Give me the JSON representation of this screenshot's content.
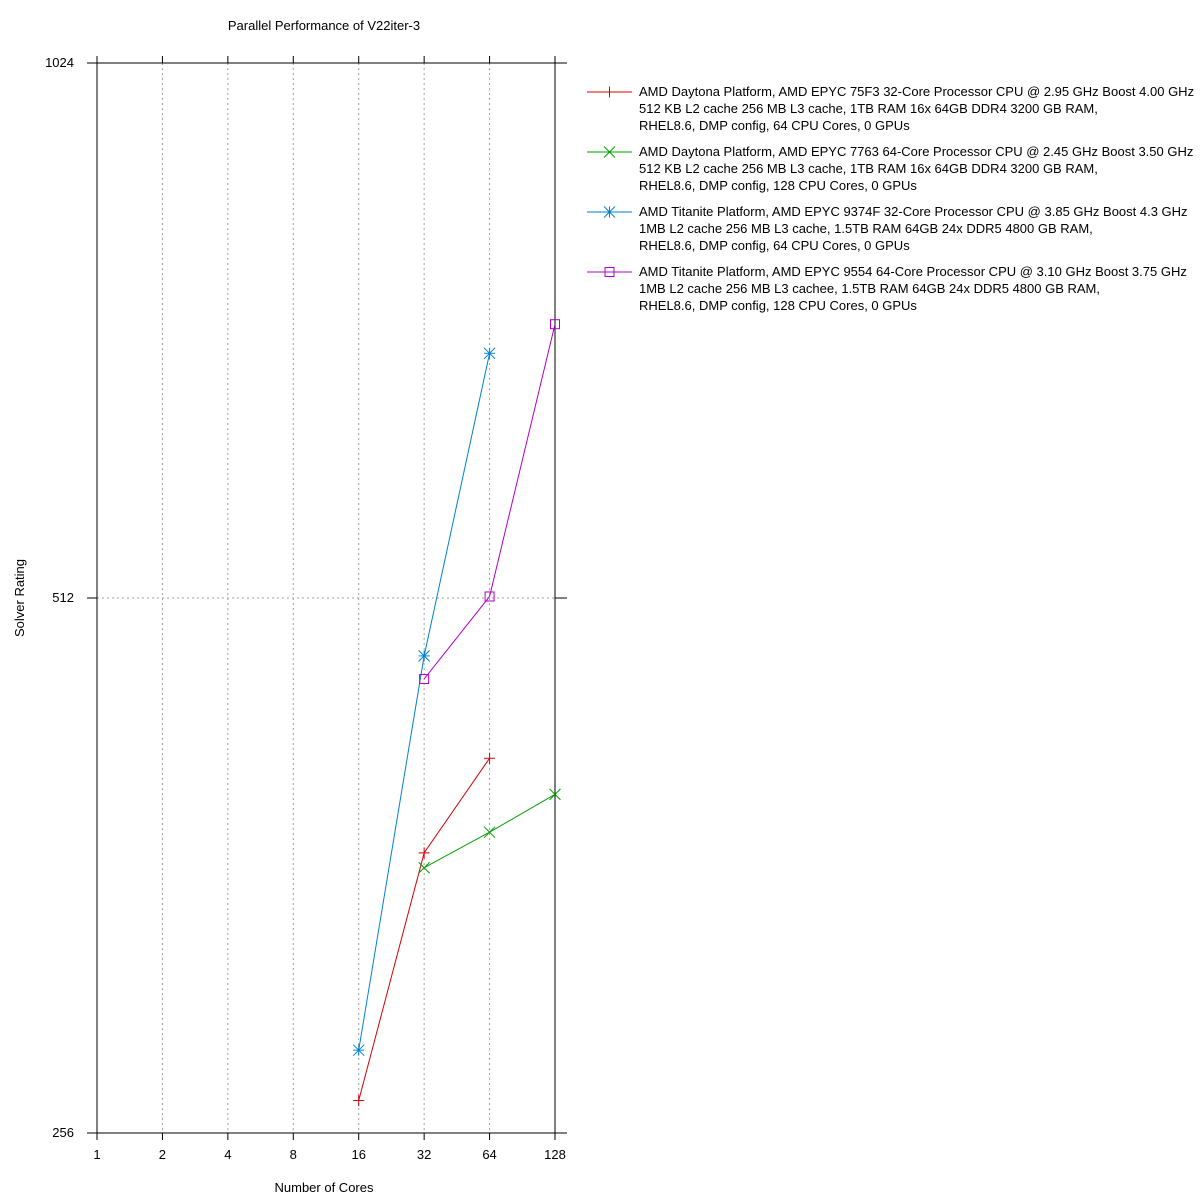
{
  "chart_data": {
    "type": "line",
    "title": "Parallel Performance of V22iter-3",
    "xlabel": "Number of Cores",
    "ylabel": "Solver Rating",
    "x_scale": "log2",
    "y_scale": "log2",
    "xlim": [
      1,
      128
    ],
    "ylim": [
      256,
      1024
    ],
    "x_ticks": [
      "1",
      "2",
      "4",
      "8",
      "16",
      "32",
      "64",
      "128"
    ],
    "y_ticks": [
      "256",
      "512",
      "1024"
    ],
    "grid": true,
    "legend_position": "right",
    "series": [
      {
        "name_lines": [
          "AMD Daytona Platform, AMD EPYC 75F3 32-Core Processor CPU @ 2.95 GHz Boost 4.00 GHz",
          "512 KB L2 cache 256 MB L3 cache, 1TB RAM 16x 64GB DDR4 3200 GB RAM,",
          "RHEL8.6, DMP config, 64 CPU Cores, 0 GPUs"
        ],
        "color": "#d40000",
        "marker": "plus",
        "x": [
          16,
          32,
          64
        ],
        "y": [
          267,
          368,
          416
        ]
      },
      {
        "name_lines": [
          "AMD Daytona Platform, AMD EPYC 7763 64-Core Processor CPU @ 2.45 GHz Boost 3.50 GHz",
          "512 KB L2 cache 256 MB L3 cache, 1TB RAM 16x 64GB DDR4 3200 GB RAM,",
          "RHEL8.6, DMP config, 128 CPU Cores, 0 GPUs"
        ],
        "color": "#00a000",
        "marker": "x",
        "x": [
          32,
          64,
          128
        ],
        "y": [
          361,
          378,
          397
        ]
      },
      {
        "name_lines": [
          "AMD Titanite Platform, AMD EPYC 9374F 32-Core Processor CPU @ 3.85 GHz Boost 4.3 GHz",
          "  1MB L2 cache 256 MB L3 cache, 1.5TB RAM 64GB 24x DDR5 4800 GB RAM,",
          "RHEL8.6, DMP config, 64 CPU Cores, 0 GPUs"
        ],
        "color": "#0080d0",
        "marker": "star",
        "x": [
          16,
          32,
          64
        ],
        "y": [
          285,
          475,
          703
        ]
      },
      {
        "name_lines": [
          "AMD Titanite Platform, AMD EPYC 9554 64-Core Processor CPU @ 3.10 GHz Boost 3.75 GHz",
          " 1MB L2 cache 256 MB L3 cachee, 1.5TB RAM 64GB 24x DDR5 4800 GB RAM,",
          "RHEL8.6, DMP config, 128 CPU Cores, 0 GPUs"
        ],
        "color": "#b000c8",
        "marker": "square",
        "x": [
          32,
          64,
          128
        ],
        "y": [
          461,
          513,
          730
        ]
      }
    ]
  }
}
